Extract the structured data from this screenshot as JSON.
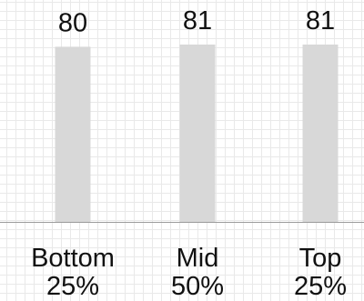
{
  "chart_data": {
    "type": "bar",
    "categories": [
      "Bottom",
      "Mid",
      "Top"
    ],
    "category_shares": [
      "25%",
      "50%",
      "25%"
    ],
    "values": [
      80,
      81,
      81
    ],
    "value_labels": [
      "80",
      "81",
      "81"
    ],
    "ylim": [
      0,
      81
    ],
    "grid": true,
    "bar_color": "#d8d8d8",
    "axis_color": "#9a9a9a",
    "grid_color": "#e9e9e9"
  }
}
